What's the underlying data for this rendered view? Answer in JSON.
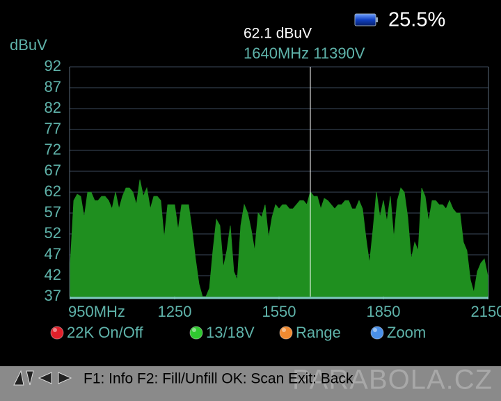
{
  "status": {
    "battery": "25.5%"
  },
  "chart_data": {
    "type": "area",
    "ylabel": "dBuV",
    "color": "#1f8f1f",
    "grid": true,
    "xlim": [
      950,
      2150
    ],
    "ylim": [
      37,
      92
    ],
    "yticks": [
      37,
      42,
      47,
      52,
      57,
      62,
      67,
      72,
      77,
      82,
      87,
      92
    ],
    "xticks": [
      {
        "value": 950,
        "label": "950MHz"
      },
      1250,
      1550,
      1850,
      2150
    ],
    "cursor": {
      "x": 1640,
      "level": "62.1 dBuV",
      "label": "1640MHz 11390V"
    },
    "x": [
      950,
      960,
      970,
      980,
      990,
      1000,
      1010,
      1020,
      1030,
      1040,
      1050,
      1060,
      1070,
      1080,
      1090,
      1100,
      1110,
      1120,
      1130,
      1140,
      1150,
      1160,
      1170,
      1180,
      1190,
      1200,
      1210,
      1220,
      1230,
      1240,
      1250,
      1260,
      1270,
      1280,
      1290,
      1300,
      1310,
      1320,
      1330,
      1340,
      1350,
      1360,
      1370,
      1380,
      1390,
      1400,
      1410,
      1420,
      1430,
      1440,
      1450,
      1460,
      1470,
      1480,
      1490,
      1500,
      1510,
      1520,
      1530,
      1540,
      1550,
      1560,
      1570,
      1580,
      1590,
      1600,
      1610,
      1620,
      1630,
      1640,
      1650,
      1660,
      1670,
      1680,
      1690,
      1700,
      1710,
      1720,
      1730,
      1740,
      1750,
      1760,
      1770,
      1780,
      1790,
      1800,
      1810,
      1820,
      1830,
      1840,
      1850,
      1860,
      1870,
      1880,
      1890,
      1900,
      1910,
      1920,
      1930,
      1940,
      1950,
      1960,
      1970,
      1980,
      1990,
      2000,
      2010,
      2020,
      2030,
      2040,
      2050,
      2060,
      2070,
      2080,
      2090,
      2100,
      2110,
      2120,
      2130,
      2140,
      2150
    ],
    "values": [
      45,
      60,
      61.5,
      61,
      56,
      62,
      62,
      60,
      60,
      61,
      61,
      60,
      58,
      62,
      58,
      61,
      63,
      63,
      62,
      59,
      65,
      61,
      63,
      58,
      61,
      61,
      60,
      51,
      59,
      59,
      59,
      53,
      59,
      59,
      59,
      53,
      46,
      40,
      37,
      37,
      39,
      48,
      55.5,
      54,
      44,
      48,
      54,
      43,
      41,
      54,
      59,
      57,
      53,
      48,
      57,
      56,
      59,
      51,
      56,
      59,
      58,
      59,
      59,
      58,
      58,
      59,
      60,
      60,
      59,
      62.1,
      61,
      61,
      58,
      60.5,
      60,
      59,
      58,
      59,
      59,
      60,
      60,
      58,
      58,
      60,
      58,
      51,
      45,
      53,
      62,
      56,
      60,
      55,
      61,
      51,
      60,
      63,
      62,
      56,
      46,
      50,
      48,
      63,
      61,
      55,
      60,
      60,
      59,
      59,
      58,
      60,
      58,
      57,
      57,
      50,
      48,
      41,
      38,
      43,
      45,
      46,
      42
    ]
  },
  "buttons": [
    {
      "label": "22K On/Off",
      "color": "#e0202a"
    },
    {
      "label": "13/18V",
      "color": "#2fc82f"
    },
    {
      "label": "Range",
      "color": "#f08a30"
    },
    {
      "label": "Zoom",
      "color": "#4a90e8"
    }
  ],
  "footer": {
    "help": "F1: Info F2: Fill/Unfill OK: Scan Exit: Back",
    "watermark": "PARABOLA.CZ"
  }
}
